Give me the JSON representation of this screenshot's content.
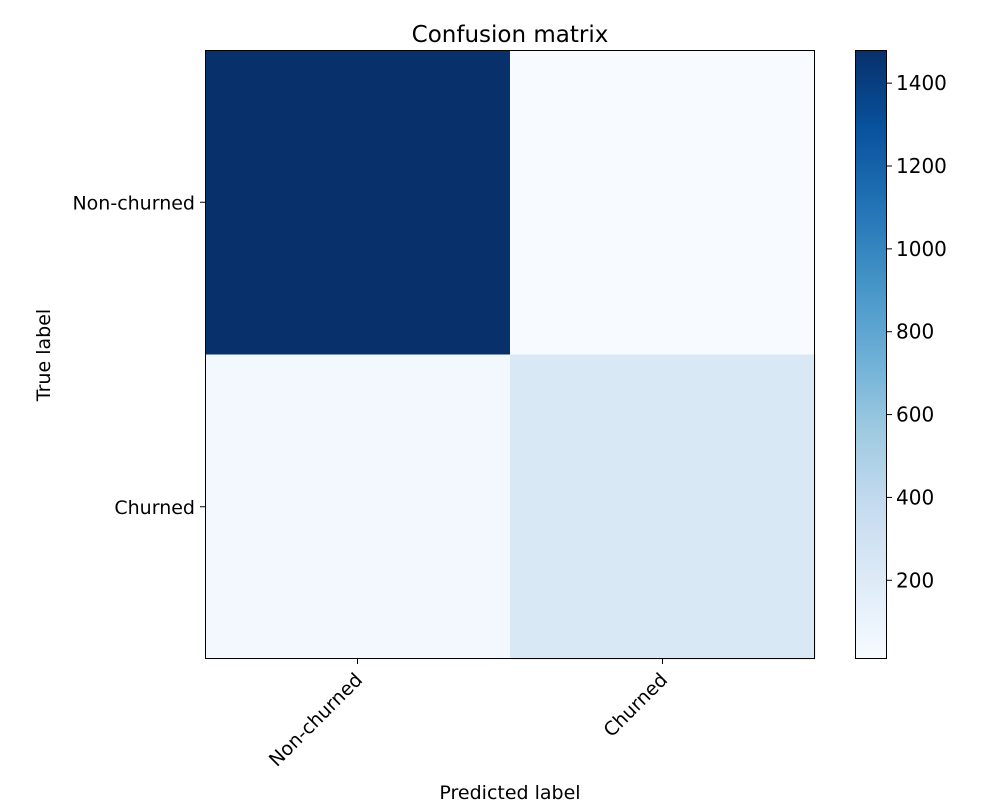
{
  "chart_data": {
    "type": "heatmap",
    "title": "Confusion matrix",
    "xlabel": "Predicted label",
    "ylabel": "True label",
    "x_categories": [
      "Non-churned",
      "Churned"
    ],
    "y_categories": [
      "Non-churned",
      "Churned"
    ],
    "values": [
      [
        1480,
        10
      ],
      [
        50,
        230
      ]
    ],
    "colormap": "Blues",
    "colorbar": {
      "range": [
        10,
        1480
      ],
      "ticks": [
        200,
        400,
        600,
        800,
        1000,
        1200,
        1400
      ]
    },
    "grid": false
  }
}
